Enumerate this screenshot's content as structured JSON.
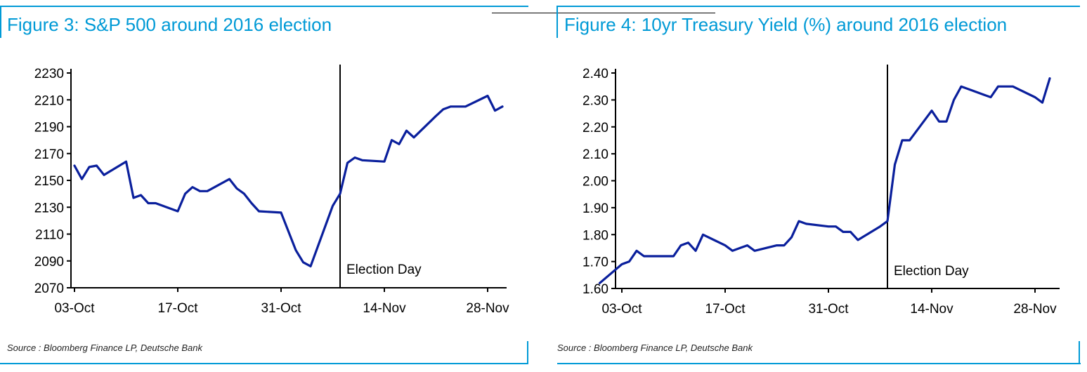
{
  "footer_text": "Source : Bloomberg Finance LP, Deutsche Bank",
  "chart_data": [
    {
      "type": "line",
      "title": "Figure 3: S&P 500 around 2016 election",
      "xlabel": "",
      "ylabel": "",
      "x_ticks": [
        "03-Oct",
        "17-Oct",
        "31-Oct",
        "14-Nov",
        "28-Nov"
      ],
      "y_ticks": [
        "2230",
        "2210",
        "2190",
        "2170",
        "2150",
        "2130",
        "2110",
        "2090",
        "2070"
      ],
      "ylim": [
        2070,
        2230
      ],
      "grid": false,
      "legend": "none",
      "line_color": "#0a1f9c",
      "annotation": {
        "label": "Election Day",
        "x": "2016-11-08"
      },
      "series": [
        {
          "x": [
            "2016-10-03",
            "2016-10-04",
            "2016-10-05",
            "2016-10-06",
            "2016-10-07",
            "2016-10-10",
            "2016-10-11",
            "2016-10-12",
            "2016-10-13",
            "2016-10-14",
            "2016-10-17",
            "2016-10-18",
            "2016-10-19",
            "2016-10-20",
            "2016-10-21",
            "2016-10-24",
            "2016-10-25",
            "2016-10-26",
            "2016-10-27",
            "2016-10-28",
            "2016-10-31",
            "2016-11-01",
            "2016-11-02",
            "2016-11-03",
            "2016-11-04",
            "2016-11-07",
            "2016-11-08",
            "2016-11-09",
            "2016-11-10",
            "2016-11-11",
            "2016-11-14",
            "2016-11-15",
            "2016-11-16",
            "2016-11-17",
            "2016-11-18",
            "2016-11-21",
            "2016-11-22",
            "2016-11-23",
            "2016-11-25",
            "2016-11-28",
            "2016-11-29",
            "2016-11-30"
          ],
          "values": [
            2161,
            2151,
            2160,
            2161,
            2154,
            2164,
            2137,
            2139,
            2133,
            2133,
            2127,
            2140,
            2145,
            2142,
            2142,
            2151,
            2144,
            2140,
            2133,
            2127,
            2126,
            2112,
            2098,
            2089,
            2086,
            2131,
            2140,
            2163,
            2167,
            2165,
            2164,
            2180,
            2177,
            2187,
            2182,
            2198,
            2203,
            2205,
            2205,
            2213,
            2202,
            2205
          ]
        }
      ]
    },
    {
      "type": "line",
      "title": "Figure 4: 10yr Treasury Yield (%) around 2016 election",
      "xlabel": "",
      "ylabel": "",
      "x_ticks": [
        "03-Oct",
        "17-Oct",
        "31-Oct",
        "14-Nov",
        "28-Nov"
      ],
      "y_ticks": [
        "2.40",
        "2.30",
        "2.20",
        "2.10",
        "2.00",
        "1.90",
        "1.80",
        "1.70",
        "1.60"
      ],
      "ylim": [
        1.6,
        2.4
      ],
      "grid": false,
      "legend": "none",
      "line_color": "#0a1f9c",
      "annotation": {
        "label": "Election Day",
        "x": "2016-11-08"
      },
      "series": [
        {
          "x": [
            "2016-09-30",
            "2016-10-03",
            "2016-10-04",
            "2016-10-05",
            "2016-10-06",
            "2016-10-07",
            "2016-10-10",
            "2016-10-11",
            "2016-10-12",
            "2016-10-13",
            "2016-10-14",
            "2016-10-17",
            "2016-10-18",
            "2016-10-19",
            "2016-10-20",
            "2016-10-21",
            "2016-10-24",
            "2016-10-25",
            "2016-10-26",
            "2016-10-27",
            "2016-10-28",
            "2016-10-31",
            "2016-11-01",
            "2016-11-02",
            "2016-11-03",
            "2016-11-04",
            "2016-11-07",
            "2016-11-08",
            "2016-11-09",
            "2016-11-10",
            "2016-11-11",
            "2016-11-14",
            "2016-11-15",
            "2016-11-16",
            "2016-11-17",
            "2016-11-18",
            "2016-11-21",
            "2016-11-22",
            "2016-11-23",
            "2016-11-25",
            "2016-11-28",
            "2016-11-29",
            "2016-11-30"
          ],
          "values": [
            1.62,
            1.69,
            1.7,
            1.74,
            1.72,
            1.72,
            1.72,
            1.76,
            1.77,
            1.74,
            1.8,
            1.76,
            1.74,
            1.75,
            1.76,
            1.74,
            1.76,
            1.76,
            1.79,
            1.85,
            1.84,
            1.83,
            1.83,
            1.81,
            1.81,
            1.78,
            1.83,
            1.85,
            2.06,
            2.15,
            2.15,
            2.26,
            2.22,
            2.22,
            2.3,
            2.35,
            2.32,
            2.31,
            2.35,
            2.35,
            2.31,
            2.29,
            2.38
          ]
        }
      ]
    }
  ]
}
